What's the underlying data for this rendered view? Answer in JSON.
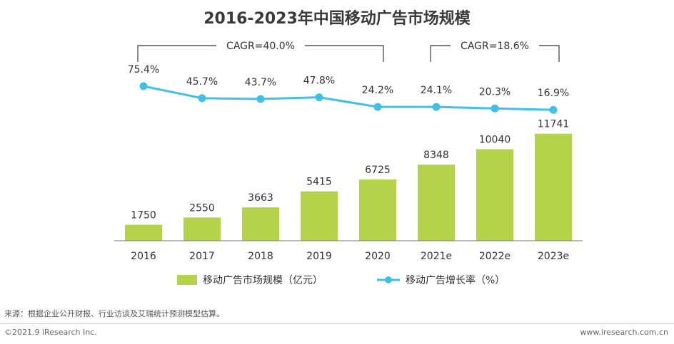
{
  "title": "2016-2023年中国移动广告市场规模",
  "footer": {
    "source": "来源：根据企业公开财报、行业访谈及艾瑞统计预测模型估算。",
    "copyright": "©2021.9 iResearch Inc.",
    "website": "www.iresearch.com.cn"
  },
  "colors": {
    "bar": "#b5d34a",
    "line": "#3ec0e8",
    "bracket": "#555555",
    "axis": "#777777",
    "text": "#333333"
  },
  "chart_data": {
    "type": "bar",
    "categories": [
      "2016",
      "2017",
      "2018",
      "2019",
      "2020",
      "2021e",
      "2022e",
      "2023e"
    ],
    "series": [
      {
        "name": "移动广告市场规模（亿元）",
        "type": "bar",
        "values": [
          1750,
          2550,
          3663,
          5415,
          6725,
          8348,
          10040,
          11741
        ],
        "labels": [
          "1750",
          "2550",
          "3663",
          "5415",
          "6725",
          "8348",
          "10040",
          "11741"
        ]
      },
      {
        "name": "移动广告增长率（%）",
        "type": "line",
        "values": [
          75.4,
          45.7,
          43.7,
          47.8,
          24.2,
          24.1,
          20.3,
          16.9
        ],
        "labels": [
          "75.4%",
          "45.7%",
          "43.7%",
          "47.8%",
          "24.2%",
          "24.1%",
          "20.3%",
          "16.9%"
        ]
      }
    ],
    "annotations": [
      {
        "text": "CAGR=40.0%",
        "from": "2016",
        "to": "2020"
      },
      {
        "text": "CAGR=18.6%",
        "from": "2021e",
        "to": "2023e"
      }
    ],
    "grid": false,
    "legend_position": "bottom"
  }
}
